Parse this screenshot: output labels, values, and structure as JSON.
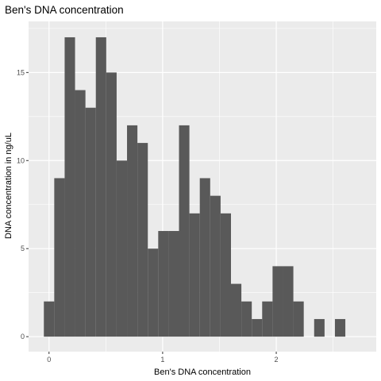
{
  "chart_data": {
    "type": "bar",
    "title": "Ben's DNA concentration",
    "xlabel": "Ben's DNA concentration",
    "ylabel": "DNA concentration in ng/uL",
    "bin_width": 0.0915,
    "bin_start": -0.0455,
    "values": [
      2,
      9,
      17,
      14,
      13,
      17,
      15,
      10,
      12,
      11,
      5,
      6,
      6,
      12,
      7,
      9,
      8,
      7,
      3,
      2,
      1,
      2,
      4,
      4,
      2,
      0,
      1,
      0,
      1
    ],
    "xlim": [
      -0.18,
      2.88
    ],
    "ylim": [
      -0.85,
      17.9
    ],
    "x_ticks": [
      0,
      1,
      2
    ],
    "x_tick_labels": [
      "0",
      "1",
      "2"
    ],
    "y_ticks": [
      0,
      5,
      10,
      15
    ],
    "y_tick_labels": [
      "0",
      "5",
      "10",
      "15"
    ],
    "grid": true,
    "colors": {
      "bar": "#595959",
      "panel": "#ebebeb",
      "grid_major": "#ffffff",
      "tick_text": "#4d4d4d",
      "tick_mark": "#333333"
    }
  }
}
